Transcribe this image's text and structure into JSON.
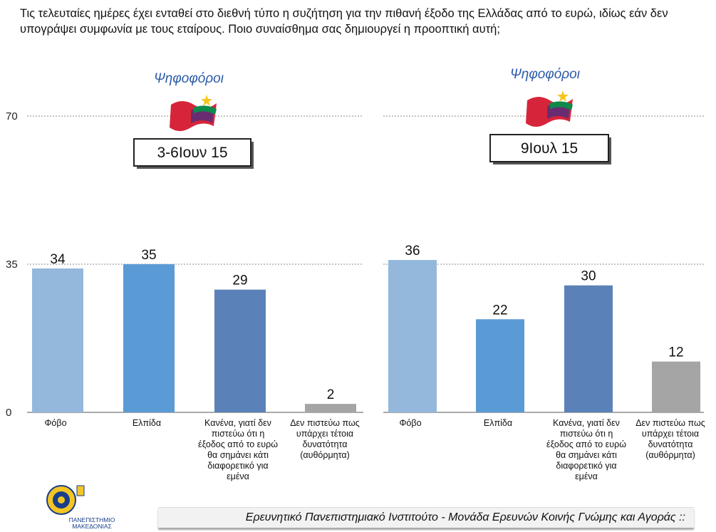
{
  "question": "Τις τελευταίες ημέρες έχει ενταθεί στο διεθνή τύπο η συζήτηση για την πιθανή έξοδο της Ελλάδας από το ευρώ, ιδίως εάν δεν υπογράψει συμφωνία με τους εταίρους. Ποιο συναίσθημα σας δημιουργεί η προοπτική αυτή;",
  "colors": {
    "fear": "#93b8dc",
    "hope": "#5b9bd5",
    "none": "#5b82b8",
    "dont_believe": "#a5a5a5",
    "flag_red": "#d6253a",
    "flag_green": "#0e8a4a",
    "flag_purple": "#6a2c70",
    "star": "#f5c518",
    "voter_text": "#2a5aa8"
  },
  "chart_data": [
    {
      "type": "bar",
      "group_label": "Ψηφοφόροι",
      "party_icon": "syriza-flag-icon",
      "period": "3-6Ιουν 15",
      "categories": [
        "Φόβο",
        "Ελπίδα",
        "Κανένα, γιατί δεν πιστεύω ότι η έξοδος από το ευρώ θα σημάνει κάτι διαφορετικό για εμένα",
        "Δεν πιστεύω πως υπάρχει τέτοια δυνατότητα (αυθόρμητα)"
      ],
      "values": [
        34,
        35,
        29,
        2
      ],
      "yticks": [
        0,
        35,
        70
      ],
      "ylim": [
        0,
        70
      ],
      "grid": true
    },
    {
      "type": "bar",
      "group_label": "Ψηφοφόροι",
      "party_icon": "syriza-flag-icon",
      "period": "9Ιουλ 15",
      "categories": [
        "Φόβο",
        "Ελπίδα",
        "Κανένα, γιατί δεν πιστεύω ότι η έξοδος από το ευρώ θα σημάνει κάτι διαφορετικό για εμένα",
        "Δεν πιστεύω πως υπάρχει τέτοια δυνατότητα (αυθόρμητα)"
      ],
      "values": [
        36,
        22,
        30,
        12
      ],
      "ylim": [
        0,
        70
      ],
      "grid": true
    }
  ],
  "footer": {
    "text": "Ερευνητικό Πανεπιστημιακό Ινστιτούτο - Μονάδα Ερευνών Κοινής Γνώμης και Αγοράς ::",
    "logo_icon": "university-macedonia-logo-icon",
    "logo_caption": "ΠΑΝΕΠΙΣΤΗΜΙΟ ΜΑΚΕΔΟΝΙΑΣ"
  }
}
